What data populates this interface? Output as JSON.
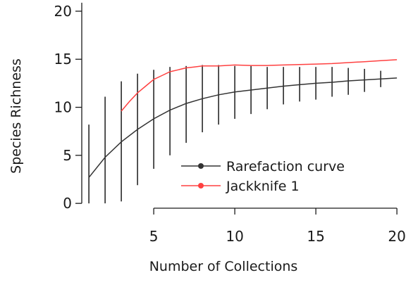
{
  "chart_data": {
    "type": "line",
    "title": "",
    "xlabel": "Number of Collections",
    "ylabel": "Species Richness",
    "xlim": [
      0.3,
      20.3
    ],
    "ylim": [
      -0.5,
      20.8
    ],
    "x_ticks": [
      "5",
      "10",
      "15",
      "20"
    ],
    "y_ticks": [
      "0",
      "5",
      "10",
      "15",
      "20"
    ],
    "grid": false,
    "legend_position": "lower-right",
    "series": [
      {
        "name": "Rarefaction curve",
        "color": "#333333",
        "x": [
          1,
          2,
          3,
          4,
          5,
          6,
          7,
          8,
          9,
          10,
          11,
          12,
          13,
          14,
          15,
          16,
          17,
          18,
          19,
          20
        ],
        "values": [
          2.7,
          4.8,
          6.4,
          7.7,
          8.8,
          9.7,
          10.4,
          10.9,
          11.3,
          11.6,
          11.8,
          12.0,
          12.2,
          12.35,
          12.5,
          12.6,
          12.75,
          12.85,
          12.95,
          13.05
        ],
        "error_low": [
          0.0,
          0.0,
          0.2,
          1.9,
          3.6,
          5.0,
          6.3,
          7.4,
          8.2,
          8.8,
          9.3,
          9.8,
          10.3,
          10.6,
          10.8,
          11.1,
          11.3,
          11.6,
          12.1,
          13.05
        ],
        "error_high": [
          8.2,
          11.1,
          12.7,
          13.5,
          13.9,
          14.2,
          14.3,
          14.4,
          14.4,
          14.3,
          14.3,
          14.2,
          14.2,
          14.2,
          14.2,
          14.2,
          14.1,
          14.0,
          13.8,
          13.05
        ]
      },
      {
        "name": "Jackknife 1",
        "color": "#ff4040",
        "x": [
          3,
          3.5,
          4,
          4.5,
          5,
          5.5,
          6,
          6.5,
          7,
          7.5,
          8,
          9,
          10,
          11,
          12,
          13,
          14,
          15,
          16,
          17,
          18,
          19,
          20
        ],
        "values": [
          9.6,
          10.6,
          11.5,
          12.2,
          12.9,
          13.3,
          13.7,
          13.9,
          14.1,
          14.2,
          14.3,
          14.3,
          14.4,
          14.35,
          14.35,
          14.4,
          14.45,
          14.5,
          14.55,
          14.65,
          14.75,
          14.85,
          14.95
        ]
      }
    ]
  }
}
